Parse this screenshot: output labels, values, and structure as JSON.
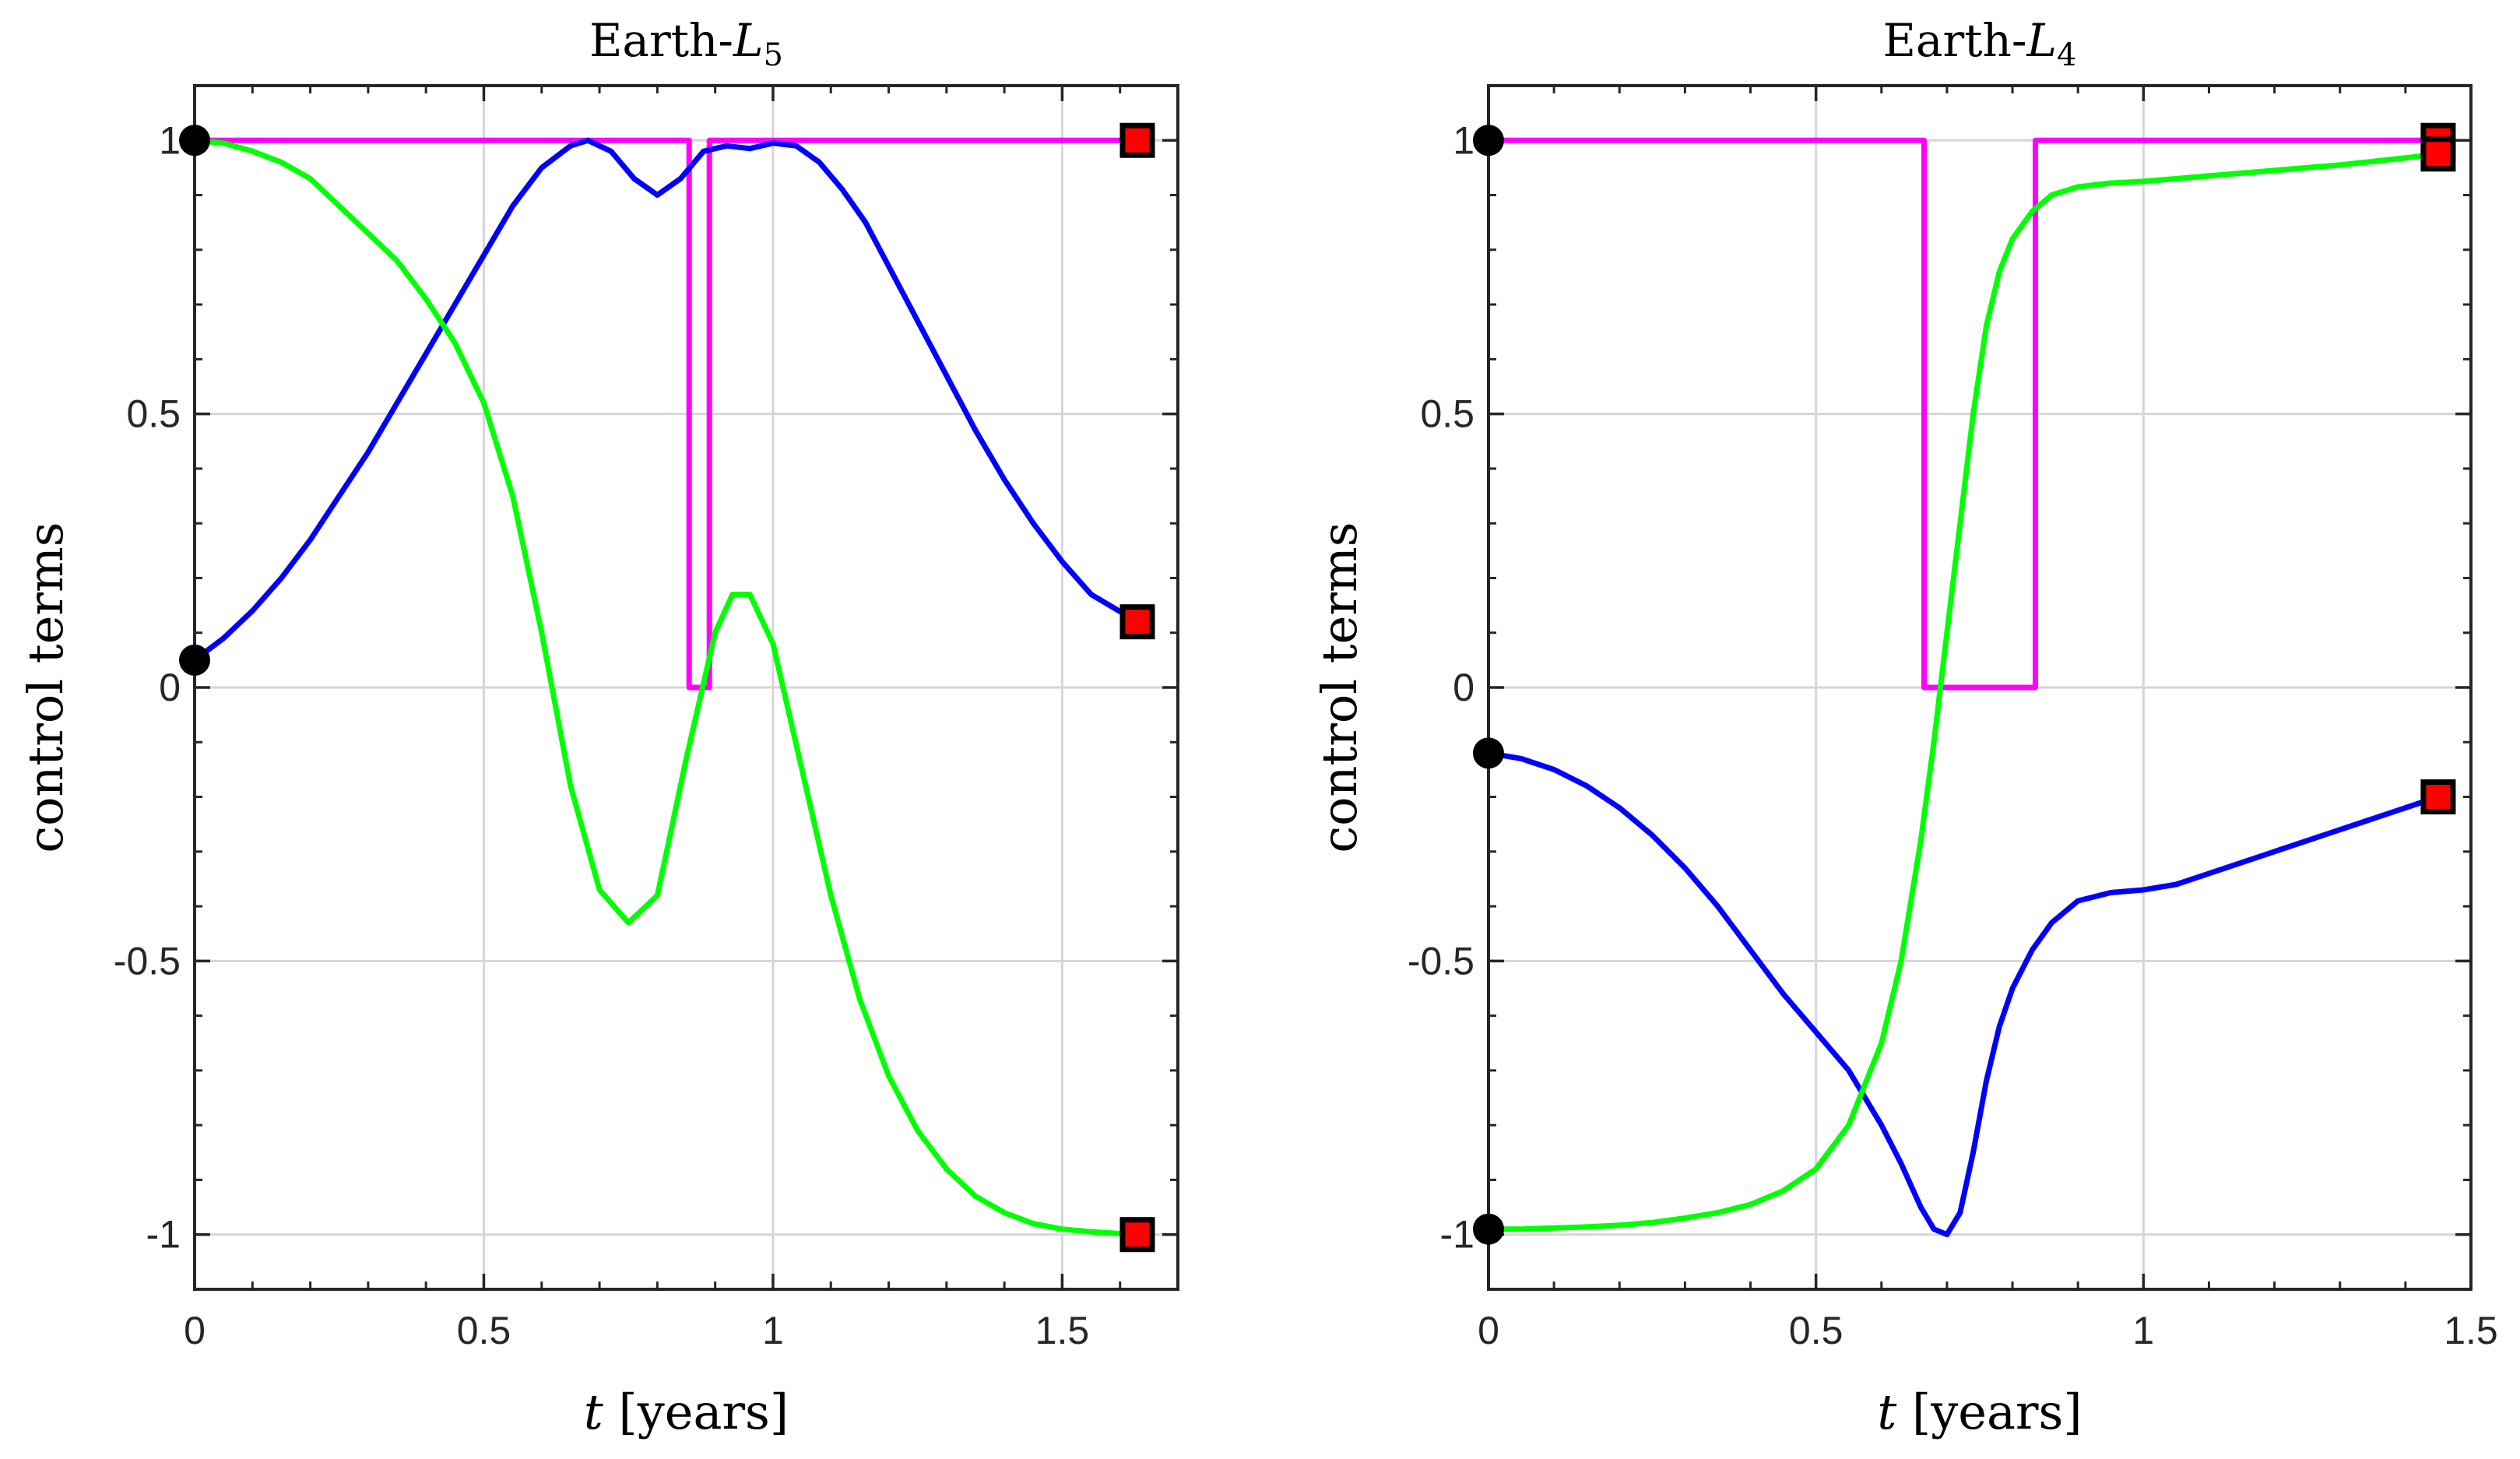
{
  "chart_data": [
    {
      "type": "line",
      "title_prefix": "Earth-",
      "title_symbol": "L",
      "title_subscript": "5",
      "xlabel_symbol": "t",
      "xlabel_units": "[years]",
      "ylabel": "control terms",
      "xlim": [
        0,
        1.7
      ],
      "ylim": [
        -1.1,
        1.1
      ],
      "xticks": [
        0,
        0.5,
        1,
        1.5
      ],
      "xtick_labels": [
        "0",
        "0.5",
        "1",
        "1.5"
      ],
      "yticks": [
        -1,
        -0.5,
        0,
        0.5,
        1
      ],
      "ytick_labels": [
        "-1",
        "-0.5",
        "0",
        "0.5",
        "1"
      ],
      "grid": true,
      "series": [
        {
          "name": "magenta",
          "color": "#ff00ff",
          "step": true,
          "x": [
            0,
            0.855,
            0.855,
            0.89,
            0.89,
            1.63
          ],
          "y": [
            1,
            1,
            0,
            0,
            1,
            1
          ]
        },
        {
          "name": "blue",
          "color": "#0000ff",
          "x": [
            0,
            0.05,
            0.1,
            0.15,
            0.2,
            0.25,
            0.3,
            0.35,
            0.4,
            0.45,
            0.5,
            0.55,
            0.6,
            0.65,
            0.68,
            0.72,
            0.76,
            0.8,
            0.84,
            0.88,
            0.92,
            0.96,
            1.0,
            1.04,
            1.08,
            1.12,
            1.16,
            1.2,
            1.25,
            1.3,
            1.35,
            1.4,
            1.45,
            1.5,
            1.55,
            1.63
          ],
          "y": [
            0.05,
            0.09,
            0.14,
            0.2,
            0.27,
            0.35,
            0.43,
            0.52,
            0.61,
            0.7,
            0.79,
            0.88,
            0.95,
            0.99,
            1.0,
            0.98,
            0.93,
            0.9,
            0.93,
            0.98,
            0.99,
            0.985,
            0.995,
            0.99,
            0.96,
            0.91,
            0.85,
            0.77,
            0.67,
            0.57,
            0.47,
            0.38,
            0.3,
            0.23,
            0.17,
            0.12
          ]
        },
        {
          "name": "green",
          "color": "#00ff00",
          "x": [
            0,
            0.05,
            0.1,
            0.15,
            0.2,
            0.25,
            0.3,
            0.35,
            0.4,
            0.45,
            0.5,
            0.55,
            0.6,
            0.65,
            0.7,
            0.75,
            0.8,
            0.85,
            0.9,
            0.93,
            0.96,
            1.0,
            1.05,
            1.1,
            1.15,
            1.2,
            1.25,
            1.3,
            1.35,
            1.4,
            1.45,
            1.5,
            1.55,
            1.63
          ],
          "y": [
            1.0,
            0.995,
            0.98,
            0.96,
            0.93,
            0.88,
            0.83,
            0.78,
            0.71,
            0.63,
            0.52,
            0.35,
            0.1,
            -0.18,
            -0.37,
            -0.43,
            -0.38,
            -0.13,
            0.1,
            0.17,
            0.17,
            0.08,
            -0.15,
            -0.38,
            -0.57,
            -0.71,
            -0.81,
            -0.88,
            -0.93,
            -0.96,
            -0.98,
            -0.99,
            -0.995,
            -1.0
          ]
        }
      ],
      "start_markers": [
        {
          "x": 0,
          "y": 1,
          "color": "#000000"
        },
        {
          "x": 0,
          "y": 0.05,
          "color": "#000000"
        }
      ],
      "end_markers": [
        {
          "x": 1.63,
          "y": 1,
          "color": "#ff0000"
        },
        {
          "x": 1.63,
          "y": 0.12,
          "color": "#ff0000"
        },
        {
          "x": 1.63,
          "y": -1,
          "color": "#ff0000"
        }
      ]
    },
    {
      "type": "line",
      "title_prefix": "Earth-",
      "title_symbol": "L",
      "title_subscript": "4",
      "xlabel_symbol": "t",
      "xlabel_units": "[years]",
      "ylabel": "control terms",
      "xlim": [
        0,
        1.5
      ],
      "ylim": [
        -1.1,
        1.1
      ],
      "xticks": [
        0,
        0.5,
        1,
        1.5
      ],
      "xtick_labels": [
        "0",
        "0.5",
        "1",
        "1.5"
      ],
      "yticks": [
        -1,
        -0.5,
        0,
        0.5,
        1
      ],
      "ytick_labels": [
        "-1",
        "-0.5",
        "0",
        "0.5",
        "1"
      ],
      "grid": true,
      "series": [
        {
          "name": "magenta",
          "color": "#ff00ff",
          "step": true,
          "x": [
            0,
            0.665,
            0.665,
            0.835,
            0.835,
            1.45
          ],
          "y": [
            1,
            1,
            0,
            0,
            1,
            1
          ]
        },
        {
          "name": "blue",
          "color": "#0000ff",
          "x": [
            0,
            0.05,
            0.1,
            0.15,
            0.2,
            0.25,
            0.3,
            0.35,
            0.4,
            0.45,
            0.5,
            0.55,
            0.6,
            0.63,
            0.66,
            0.68,
            0.7,
            0.72,
            0.74,
            0.76,
            0.78,
            0.8,
            0.83,
            0.86,
            0.9,
            0.95,
            1.0,
            1.05,
            1.1,
            1.2,
            1.3,
            1.4,
            1.45
          ],
          "y": [
            -0.12,
            -0.13,
            -0.15,
            -0.18,
            -0.22,
            -0.27,
            -0.33,
            -0.4,
            -0.48,
            -0.56,
            -0.63,
            -0.7,
            -0.8,
            -0.87,
            -0.95,
            -0.99,
            -1.0,
            -0.96,
            -0.85,
            -0.72,
            -0.62,
            -0.55,
            -0.48,
            -0.43,
            -0.39,
            -0.375,
            -0.37,
            -0.36,
            -0.34,
            -0.3,
            -0.26,
            -0.22,
            -0.2
          ]
        },
        {
          "name": "green",
          "color": "#00ff00",
          "x": [
            0,
            0.05,
            0.1,
            0.15,
            0.2,
            0.25,
            0.3,
            0.35,
            0.4,
            0.45,
            0.5,
            0.55,
            0.6,
            0.63,
            0.66,
            0.68,
            0.7,
            0.72,
            0.74,
            0.76,
            0.78,
            0.8,
            0.83,
            0.86,
            0.9,
            0.95,
            1.0,
            1.05,
            1.1,
            1.2,
            1.3,
            1.4,
            1.45
          ],
          "y": [
            -0.99,
            -0.99,
            -0.988,
            -0.986,
            -0.983,
            -0.978,
            -0.97,
            -0.96,
            -0.945,
            -0.92,
            -0.88,
            -0.8,
            -0.65,
            -0.5,
            -0.28,
            -0.1,
            0.1,
            0.3,
            0.5,
            0.66,
            0.76,
            0.82,
            0.87,
            0.9,
            0.915,
            0.922,
            0.925,
            0.93,
            0.935,
            0.945,
            0.955,
            0.968,
            0.975
          ]
        }
      ],
      "start_markers": [
        {
          "x": 0,
          "y": 1,
          "color": "#000000"
        },
        {
          "x": 0,
          "y": -0.12,
          "color": "#000000"
        },
        {
          "x": 0,
          "y": -0.99,
          "color": "#000000"
        }
      ],
      "end_markers": [
        {
          "x": 1.45,
          "y": 1,
          "color": "#ff0000"
        },
        {
          "x": 1.45,
          "y": 0.975,
          "color": "#ff0000"
        },
        {
          "x": 1.45,
          "y": -0.2,
          "color": "#ff0000"
        }
      ]
    }
  ]
}
